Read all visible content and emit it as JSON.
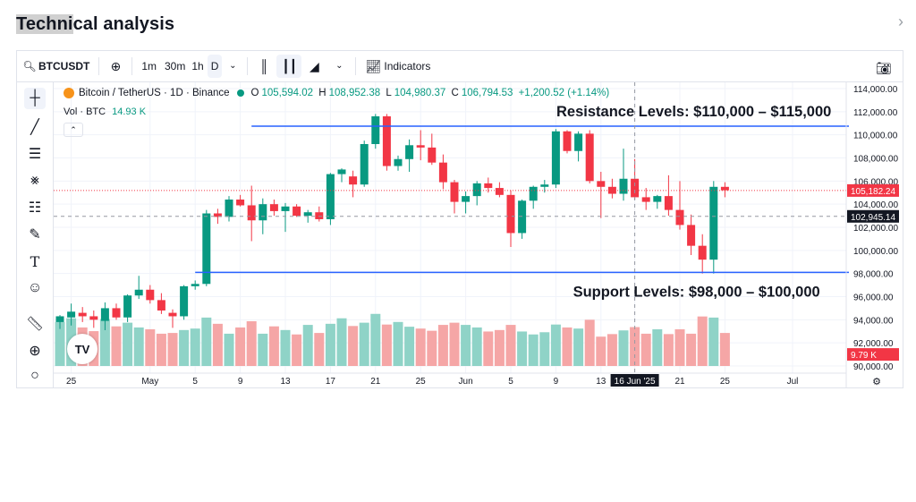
{
  "page": {
    "title_highlight": "Techni",
    "title_rest": "cal analysis"
  },
  "toolbar": {
    "symbol": "BTCUSDT",
    "intervals": [
      "1m",
      "30m",
      "1h",
      "D"
    ],
    "indicators_label": "Indicators"
  },
  "legend": {
    "name": "Bitcoin / TetherUS · 1D · Binance",
    "o_label": "O",
    "o": "105,594.02",
    "h_label": "H",
    "h": "108,952.38",
    "l_label": "L",
    "l": "104,980.37",
    "c_label": "C",
    "c": "106,794.53",
    "change": "+1,200.52 (+1.14%)",
    "vol_label": "Vol · BTC",
    "vol_value": "14.93 K"
  },
  "colors": {
    "up": "#089981",
    "down": "#f23645",
    "vol_up": "#8fd3c7",
    "vol_down": "#f5a6a6",
    "level_line": "#2962ff"
  },
  "chart_data": {
    "type": "candlestick",
    "ylim": [
      90000,
      114000
    ],
    "y_ticks": [
      "114,000.00",
      "112,000.00",
      "110,000.00",
      "108,000.00",
      "106,000.00",
      "104,000.00",
      "102,000.00",
      "100,000.00",
      "98,000.00",
      "96,000.00",
      "94,000.00",
      "92,000.00",
      "90,000.00"
    ],
    "x_ticks": [
      "25",
      "May",
      "5",
      "9",
      "13",
      "17",
      "21",
      "25",
      "Jun",
      "5",
      "9",
      "13",
      "16 Jun '25",
      "21",
      "25",
      "Jul"
    ],
    "price_labels": {
      "last": "105,182.24",
      "crosshair": "102,945.14",
      "volume": "9.79 K"
    },
    "annotations": {
      "resistance": "Resistance Levels: $110,000 – $115,000",
      "support": "Support Levels: $98,000 – $100,000"
    },
    "candles": [
      {
        "o": 93800,
        "h": 94400,
        "l": 93200,
        "c": 94300
      },
      {
        "o": 94200,
        "h": 95400,
        "l": 93500,
        "c": 94700
      },
      {
        "o": 94600,
        "h": 95100,
        "l": 93800,
        "c": 94300
      },
      {
        "o": 94300,
        "h": 94800,
        "l": 93300,
        "c": 94000
      },
      {
        "o": 93900,
        "h": 95500,
        "l": 93100,
        "c": 95000
      },
      {
        "o": 95000,
        "h": 95400,
        "l": 94000,
        "c": 94200
      },
      {
        "o": 94200,
        "h": 96200,
        "l": 93800,
        "c": 96100
      },
      {
        "o": 96100,
        "h": 97800,
        "l": 95800,
        "c": 96600
      },
      {
        "o": 96600,
        "h": 97000,
        "l": 95400,
        "c": 95700
      },
      {
        "o": 95700,
        "h": 96300,
        "l": 94500,
        "c": 94800
      },
      {
        "o": 94600,
        "h": 94900,
        "l": 93300,
        "c": 94300
      },
      {
        "o": 94300,
        "h": 97000,
        "l": 94000,
        "c": 96900
      },
      {
        "o": 96900,
        "h": 97400,
        "l": 96600,
        "c": 97100
      },
      {
        "o": 97100,
        "h": 103500,
        "l": 96900,
        "c": 103200
      },
      {
        "o": 103200,
        "h": 103600,
        "l": 102300,
        "c": 102900
      },
      {
        "o": 102900,
        "h": 104700,
        "l": 102500,
        "c": 104400
      },
      {
        "o": 104400,
        "h": 104800,
        "l": 103800,
        "c": 103900
      },
      {
        "o": 103900,
        "h": 105600,
        "l": 100800,
        "c": 102600
      },
      {
        "o": 102600,
        "h": 104500,
        "l": 101400,
        "c": 104000
      },
      {
        "o": 104000,
        "h": 104400,
        "l": 103000,
        "c": 103400
      },
      {
        "o": 103400,
        "h": 104100,
        "l": 101600,
        "c": 103800
      },
      {
        "o": 103800,
        "h": 104000,
        "l": 102900,
        "c": 103000
      },
      {
        "o": 103000,
        "h": 103500,
        "l": 102400,
        "c": 103300
      },
      {
        "o": 103300,
        "h": 103800,
        "l": 102500,
        "c": 102700
      },
      {
        "o": 102700,
        "h": 106700,
        "l": 102200,
        "c": 106600
      },
      {
        "o": 106600,
        "h": 107100,
        "l": 105900,
        "c": 107000
      },
      {
        "o": 106400,
        "h": 106900,
        "l": 104600,
        "c": 105700
      },
      {
        "o": 105700,
        "h": 109500,
        "l": 105500,
        "c": 109200
      },
      {
        "o": 109200,
        "h": 111800,
        "l": 108800,
        "c": 111600
      },
      {
        "o": 111600,
        "h": 111800,
        "l": 106900,
        "c": 107300
      },
      {
        "o": 107300,
        "h": 108200,
        "l": 106900,
        "c": 107900
      },
      {
        "o": 107900,
        "h": 109600,
        "l": 106800,
        "c": 109100
      },
      {
        "o": 109100,
        "h": 110400,
        "l": 107800,
        "c": 108900
      },
      {
        "o": 108900,
        "h": 110100,
        "l": 107400,
        "c": 107600
      },
      {
        "o": 107600,
        "h": 108300,
        "l": 105300,
        "c": 105900
      },
      {
        "o": 105900,
        "h": 106100,
        "l": 103200,
        "c": 104200
      },
      {
        "o": 104200,
        "h": 105100,
        "l": 103200,
        "c": 104700
      },
      {
        "o": 104700,
        "h": 106000,
        "l": 103900,
        "c": 105800
      },
      {
        "o": 105800,
        "h": 106300,
        "l": 105000,
        "c": 105400
      },
      {
        "o": 105400,
        "h": 105900,
        "l": 104600,
        "c": 104800
      },
      {
        "o": 104800,
        "h": 105200,
        "l": 100300,
        "c": 101500
      },
      {
        "o": 101500,
        "h": 104400,
        "l": 101000,
        "c": 104300
      },
      {
        "o": 104300,
        "h": 105600,
        "l": 103600,
        "c": 105500
      },
      {
        "o": 105500,
        "h": 106100,
        "l": 105000,
        "c": 105700
      },
      {
        "o": 105700,
        "h": 110500,
        "l": 105400,
        "c": 110300
      },
      {
        "o": 110300,
        "h": 110400,
        "l": 108400,
        "c": 108600
      },
      {
        "o": 108600,
        "h": 110300,
        "l": 107700,
        "c": 110100
      },
      {
        "o": 110100,
        "h": 110400,
        "l": 105800,
        "c": 106000
      },
      {
        "o": 106000,
        "h": 106800,
        "l": 102800,
        "c": 105500
      },
      {
        "o": 105500,
        "h": 106200,
        "l": 104500,
        "c": 104900
      },
      {
        "o": 104900,
        "h": 108800,
        "l": 104300,
        "c": 106200
      },
      {
        "o": 106200,
        "h": 107900,
        "l": 104400,
        "c": 104600
      },
      {
        "o": 104600,
        "h": 105400,
        "l": 103500,
        "c": 104200
      },
      {
        "o": 104200,
        "h": 104800,
        "l": 103600,
        "c": 104700
      },
      {
        "o": 104700,
        "h": 106500,
        "l": 103000,
        "c": 103500
      },
      {
        "o": 103500,
        "h": 106000,
        "l": 101800,
        "c": 102200
      },
      {
        "o": 102200,
        "h": 103100,
        "l": 99600,
        "c": 100400
      },
      {
        "o": 100400,
        "h": 101400,
        "l": 98000,
        "c": 99200
      },
      {
        "o": 99200,
        "h": 106000,
        "l": 98000,
        "c": 105500
      },
      {
        "o": 105500,
        "h": 105900,
        "l": 104600,
        "c": 105200
      }
    ],
    "volume": [
      12.0,
      13.0,
      10.5,
      9.5,
      12.8,
      10.8,
      11.8,
      10.5,
      10.0,
      8.8,
      9.0,
      9.8,
      10.2,
      13.2,
      11.5,
      8.8,
      10.5,
      12.2,
      8.8,
      10.8,
      9.8,
      8.6,
      11.2,
      9.0,
      11.5,
      13.0,
      10.9,
      11.8,
      14.2,
      11.3,
      12.0,
      10.7,
      10.2,
      9.6,
      11.2,
      11.8,
      11.2,
      10.5,
      9.4,
      9.8,
      11.2,
      9.4,
      8.6,
      9.2,
      11.3,
      10.5,
      10.2,
      12.6,
      8.0,
      8.7,
      9.7,
      10.6,
      8.8,
      10.0,
      8.7,
      10.0,
      8.8,
      13.5,
      13.2,
      9.0
    ]
  }
}
